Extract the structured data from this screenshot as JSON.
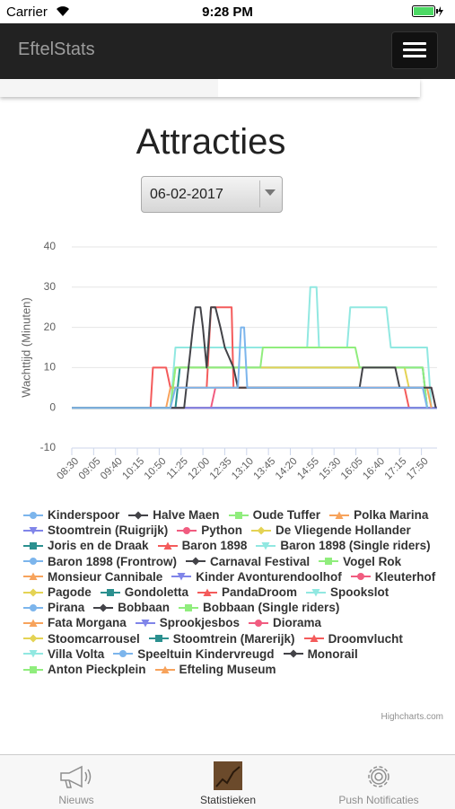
{
  "status_bar": {
    "carrier": "Carrier",
    "time": "9:28 PM"
  },
  "nav": {
    "title": "EftelStats"
  },
  "page": {
    "title": "Attracties",
    "date": "06-02-2017"
  },
  "chart_data": {
    "type": "line",
    "y_label": "Wachttijd (Minuten)",
    "credit": "Highcharts.com",
    "xlim": [
      510,
      1095
    ],
    "xticks": [
      {
        "value": 510,
        "label": "08:30"
      },
      {
        "value": 545,
        "label": "09:05"
      },
      {
        "value": 580,
        "label": "09:40"
      },
      {
        "value": 615,
        "label": "10:15"
      },
      {
        "value": 650,
        "label": "10:50"
      },
      {
        "value": 685,
        "label": "11:25"
      },
      {
        "value": 720,
        "label": "12:00"
      },
      {
        "value": 755,
        "label": "12:35"
      },
      {
        "value": 790,
        "label": "13:10"
      },
      {
        "value": 825,
        "label": "13:45"
      },
      {
        "value": 860,
        "label": "14:20"
      },
      {
        "value": 895,
        "label": "14:55"
      },
      {
        "value": 930,
        "label": "15:30"
      },
      {
        "value": 965,
        "label": "16:05"
      },
      {
        "value": 1000,
        "label": "16:40"
      },
      {
        "value": 1035,
        "label": "17:15"
      },
      {
        "value": 1070,
        "label": "17:50"
      }
    ],
    "ylim": [
      -10,
      40
    ],
    "yticks": [
      -10,
      0,
      10,
      20,
      30,
      40
    ],
    "grid": true,
    "legend": "bottom",
    "series": [
      {
        "name": "Kinderspoor",
        "color": "#7cb5ec",
        "symbol": "circle",
        "x": [
          510,
          668,
          676,
          776,
          781,
          786,
          791,
          1072,
          1079
        ],
        "values": [
          0,
          0,
          5,
          5,
          20,
          20,
          5,
          5,
          0
        ]
      },
      {
        "name": "Halve Maen",
        "color": "#434348",
        "symbol": "diamond",
        "x": [
          510,
          690,
          697,
          704,
          708,
          716,
          720,
          726,
          733,
          740,
          748,
          755,
          769,
          776,
          971,
          976,
          1028,
          1035,
          1086,
          1093
        ],
        "values": [
          0,
          0,
          10,
          20,
          25,
          25,
          20,
          10,
          25,
          25,
          20,
          15,
          10,
          5,
          5,
          10,
          10,
          5,
          5,
          0
        ]
      },
      {
        "name": "Oude Tuffer",
        "color": "#90ed7d",
        "symbol": "square",
        "x": [
          510,
          668,
          676,
          812,
          816,
          964,
          971,
          1072,
          1079
        ],
        "values": [
          0,
          0,
          10,
          10,
          15,
          15,
          10,
          10,
          0
        ]
      },
      {
        "name": "Polka Marina",
        "color": "#f7a35c",
        "symbol": "triangle",
        "x": [
          510,
          661,
          668,
          1079,
          1086
        ],
        "values": [
          0,
          0,
          5,
          5,
          0
        ]
      },
      {
        "name": "Stoomtrein (Ruigrijk)",
        "color": "#8085e9",
        "symbol": "triangle-down",
        "x": [
          510,
          1095
        ],
        "values": [
          0,
          0
        ]
      },
      {
        "name": "Python",
        "color": "#f15c80",
        "symbol": "circle",
        "x": [
          510,
          733,
          740,
          1086,
          1093
        ],
        "values": [
          0,
          0,
          5,
          5,
          0
        ]
      },
      {
        "name": "De Vliegende Hollander",
        "color": "#e4d354",
        "symbol": "diamond",
        "x": [
          510,
          668,
          676,
          1043,
          1050
        ],
        "values": [
          0,
          0,
          10,
          10,
          5
        ]
      },
      {
        "name": "Joris en de Draak",
        "color": "#2b908f",
        "symbol": "square",
        "x": [
          510,
          676,
          683,
          1072,
          1079
        ],
        "values": [
          0,
          0,
          10,
          10,
          0
        ]
      },
      {
        "name": "Baron 1898",
        "color": "#f45b5b",
        "symbol": "triangle",
        "x": [
          510,
          636,
          640,
          661,
          668,
          726,
          733,
          766,
          769,
          1043,
          1050
        ],
        "values": [
          0,
          0,
          10,
          10,
          5,
          5,
          25,
          25,
          5,
          5,
          0
        ]
      },
      {
        "name": "Baron 1898 (Single riders)",
        "color": "#91e8e1",
        "symbol": "triangle-down",
        "x": [
          510,
          676,
          683,
          1072,
          1079
        ],
        "values": [
          0,
          0,
          10,
          10,
          0
        ]
      },
      {
        "name": "Baron 1898 (Frontrow)",
        "color": "#7cb5ec",
        "symbol": "circle",
        "x": [
          510,
          1095
        ],
        "values": [
          0,
          0
        ]
      },
      {
        "name": "Carnaval Festival",
        "color": "#434348",
        "symbol": "diamond",
        "x": [
          510,
          1095
        ],
        "values": [
          0,
          0
        ]
      },
      {
        "name": "Vogel Rok",
        "color": "#90ed7d",
        "symbol": "square",
        "x": [
          510,
          1095
        ],
        "values": [
          0,
          0
        ]
      },
      {
        "name": "Monsieur Cannibale",
        "color": "#f7a35c",
        "symbol": "triangle",
        "x": [
          510,
          1095
        ],
        "values": [
          0,
          0
        ]
      },
      {
        "name": "Kinder Avonturendoolhof",
        "color": "#8085e9",
        "symbol": "triangle-down",
        "x": [
          510,
          1095
        ],
        "values": [
          0,
          0
        ]
      },
      {
        "name": "Kleuterhof",
        "color": "#f15c80",
        "symbol": "circle",
        "x": [
          510,
          1095
        ],
        "values": [
          0,
          0
        ]
      },
      {
        "name": "Pagode",
        "color": "#e4d354",
        "symbol": "diamond",
        "x": [
          510,
          1095
        ],
        "values": [
          0,
          0
        ]
      },
      {
        "name": "Gondoletta",
        "color": "#2b908f",
        "symbol": "square",
        "x": [
          510,
          1095
        ],
        "values": [
          0,
          0
        ]
      },
      {
        "name": "PandaDroom",
        "color": "#f45b5b",
        "symbol": "triangle",
        "x": [
          510,
          1095
        ],
        "values": [
          0,
          0
        ]
      },
      {
        "name": "Spookslot",
        "color": "#91e8e1",
        "symbol": "triangle-down",
        "x": [
          510,
          668,
          676,
          887,
          892,
          902,
          906,
          951,
          956,
          1014,
          1021,
          1079,
          1086
        ],
        "values": [
          0,
          0,
          15,
          15,
          30,
          30,
          15,
          15,
          25,
          25,
          15,
          15,
          0
        ]
      },
      {
        "name": "Pirana",
        "color": "#7cb5ec",
        "symbol": "circle",
        "x": [
          510,
          1095
        ],
        "values": [
          0,
          0
        ]
      },
      {
        "name": "Bobbaan",
        "color": "#434348",
        "symbol": "diamond",
        "x": [
          510,
          1095
        ],
        "values": [
          0,
          0
        ]
      },
      {
        "name": "Bobbaan (Single riders)",
        "color": "#90ed7d",
        "symbol": "square",
        "x": [
          510,
          1095
        ],
        "values": [
          0,
          0
        ]
      },
      {
        "name": "Fata Morgana",
        "color": "#f7a35c",
        "symbol": "triangle",
        "x": [
          510,
          1095
        ],
        "values": [
          0,
          0
        ]
      },
      {
        "name": "Sprookjesbos",
        "color": "#8085e9",
        "symbol": "triangle-down",
        "x": [
          510,
          1095
        ],
        "values": [
          0,
          0
        ]
      },
      {
        "name": "Diorama",
        "color": "#f15c80",
        "symbol": "circle",
        "x": [
          510,
          1095
        ],
        "values": [
          0,
          0
        ]
      },
      {
        "name": "Stoomcarrousel",
        "color": "#e4d354",
        "symbol": "diamond",
        "x": [
          510,
          1095
        ],
        "values": [
          0,
          0
        ]
      },
      {
        "name": "Stoomtrein (Marerijk)",
        "color": "#2b908f",
        "symbol": "square",
        "x": [
          510,
          1095
        ],
        "values": [
          0,
          0
        ]
      },
      {
        "name": "Droomvlucht",
        "color": "#f45b5b",
        "symbol": "triangle",
        "x": [
          510,
          1095
        ],
        "values": [
          0,
          0
        ]
      },
      {
        "name": "Villa Volta",
        "color": "#91e8e1",
        "symbol": "triangle-down",
        "x": [
          510,
          1095
        ],
        "values": [
          0,
          0
        ]
      },
      {
        "name": "Speeltuin Kindervreugd",
        "color": "#7cb5ec",
        "symbol": "circle",
        "x": [
          510,
          1095
        ],
        "values": [
          0,
          0
        ]
      },
      {
        "name": "Monorail",
        "color": "#434348",
        "symbol": "diamond",
        "x": [
          510,
          1095
        ],
        "values": [
          0,
          0
        ]
      },
      {
        "name": "Anton Pieckplein",
        "color": "#90ed7d",
        "symbol": "square",
        "x": [
          510,
          1095
        ],
        "values": [
          0,
          0
        ]
      },
      {
        "name": "Efteling Museum",
        "color": "#f7a35c",
        "symbol": "triangle",
        "x": [
          510,
          1095
        ],
        "values": [
          0,
          0
        ]
      }
    ]
  },
  "tabs": [
    "Nieuws",
    "Statistieken",
    "Push Notificaties"
  ]
}
